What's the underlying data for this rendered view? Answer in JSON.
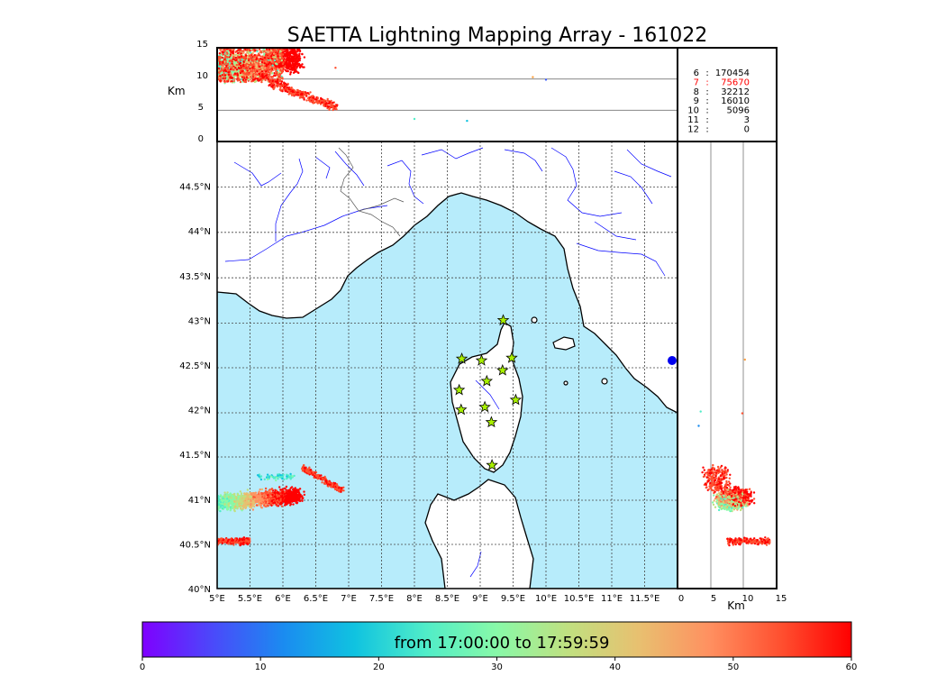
{
  "chart_data": {
    "type": "scatter",
    "title": "SAETTA Lightning Mapping Array - 161022",
    "subtitle": "from 17:00:00 to 17:59:59",
    "panels": {
      "altitude_top": {
        "ylabel": "Km",
        "ylim": [
          0,
          15
        ],
        "yticks": [
          "15",
          "10",
          "5",
          "0"
        ],
        "hlines_km": [
          5,
          10
        ]
      },
      "altitude_right": {
        "xlabel": "Km",
        "xlim": [
          0,
          15
        ],
        "xticks": [
          "0",
          "5",
          "10",
          "15"
        ],
        "vlines_km": [
          5,
          10
        ]
      },
      "map": {
        "xlim_lon": [
          5.0,
          12.0
        ],
        "ylim_lat": [
          40.0,
          45.0
        ],
        "xticks": [
          "5°E",
          "5.5°E",
          "6°E",
          "6.5°E",
          "7°E",
          "7.5°E",
          "8°E",
          "8.5°E",
          "9°E",
          "9.5°E",
          "10°E",
          "10.5°E",
          "11°E",
          "11.5°E"
        ],
        "yticks": [
          "44.5°N",
          "44°N",
          "43.5°N",
          "43°N",
          "42.5°N",
          "42°N",
          "41.5°N",
          "41°N",
          "40.5°N",
          "40°N"
        ],
        "grid": "dotted"
      }
    },
    "station_counts": [
      {
        "stations": "6",
        "count": "170454",
        "color": "#000000"
      },
      {
        "stations": "7",
        "count": "75670",
        "color": "#ff0000"
      },
      {
        "stations": "8",
        "count": "32212",
        "color": "#000000"
      },
      {
        "stations": "9",
        "count": "16010",
        "color": "#000000"
      },
      {
        "stations": "10",
        "count": "5096",
        "color": "#000000"
      },
      {
        "stations": "11",
        "count": "3",
        "color": "#000000"
      },
      {
        "stations": "12",
        "count": "0",
        "color": "#000000"
      }
    ],
    "stations_lonlat": [
      [
        9.35,
        43.0
      ],
      [
        8.72,
        42.57
      ],
      [
        9.02,
        42.55
      ],
      [
        9.48,
        42.58
      ],
      [
        9.1,
        42.32
      ],
      [
        9.34,
        42.44
      ],
      [
        8.68,
        42.22
      ],
      [
        9.54,
        42.11
      ],
      [
        8.71,
        42.0
      ],
      [
        9.07,
        42.03
      ],
      [
        9.17,
        41.86
      ],
      [
        9.18,
        41.38
      ]
    ],
    "colorbar": {
      "label": "from 17:00:00 to 17:59:59",
      "min": 0,
      "max": 60,
      "ticks": [
        "0",
        "10",
        "20",
        "30",
        "40",
        "50",
        "60"
      ],
      "colors": [
        "#7f00ff",
        "#4a4afa",
        "#1a8cf0",
        "#10c3e0",
        "#50edc8",
        "#88f9a8",
        "#c0e080",
        "#e8c070",
        "#ff9060",
        "#ff5030",
        "#ff0000"
      ]
    },
    "sources_clusters": [
      {
        "name": "cluster-west-41N",
        "lon_range": [
          5.0,
          6.9
        ],
        "lat_range": [
          40.85,
          41.45
        ],
        "time_min_range": [
          15,
          60
        ]
      },
      {
        "name": "cluster-west-40.5N",
        "lon_range": [
          5.0,
          5.5
        ],
        "lat_range": [
          40.45,
          40.62
        ],
        "time_min_range": [
          50,
          60
        ]
      }
    ]
  },
  "colors": {
    "sea": "#b7ecfb",
    "land": "#ffffff",
    "river": "#0000ff",
    "star": "#a8f000",
    "frame": "#000000"
  }
}
